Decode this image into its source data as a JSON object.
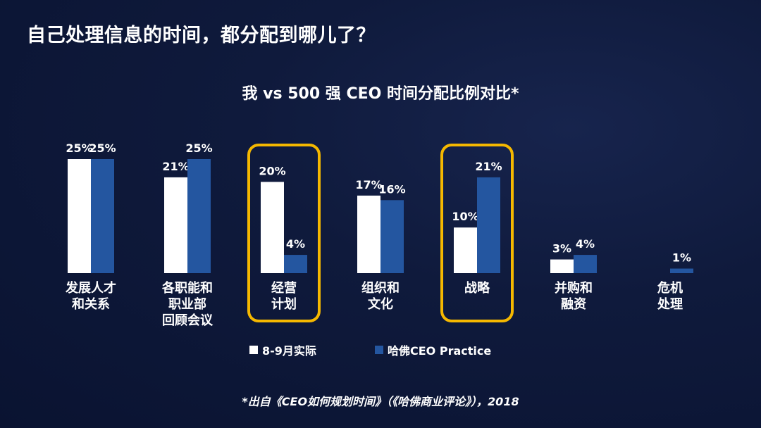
{
  "title": "自己处理信息的时间，都分配到哪儿了？",
  "chart_data": {
    "type": "bar",
    "title": "我 vs 500 强 CEO 时间分配比例对比*",
    "categories": [
      [
        "发展人才",
        "和关系"
      ],
      [
        "各职能和",
        "职业部",
        "回顾会议"
      ],
      [
        "经营",
        "计划"
      ],
      [
        "组织和",
        "文化"
      ],
      [
        "战略"
      ],
      [
        "并购和",
        "融资"
      ],
      [
        "危机",
        "处理"
      ]
    ],
    "series": [
      {
        "name": "8-9月实际",
        "color": "#ffffff",
        "values": [
          25,
          21,
          20,
          17,
          10,
          3,
          0
        ],
        "labels": [
          "25%",
          "21%",
          "20%",
          "17%",
          "10%",
          "3%",
          ""
        ]
      },
      {
        "name": "哈佛CEO Practice",
        "color": "#2456a0",
        "values": [
          25,
          25,
          4,
          16,
          21,
          4,
          1
        ],
        "labels": [
          "25%",
          "25%",
          "4%",
          "16%",
          "21%",
          "4%",
          "1%"
        ]
      }
    ],
    "highlighted_categories": [
      2,
      4
    ],
    "highlight_color": "#f5b800",
    "ylim": [
      0,
      25
    ],
    "grid": false,
    "legend_placement": "bottom"
  },
  "footnote": "*出自《CEO如何规划时间》（《哈佛商业评论》），2018"
}
